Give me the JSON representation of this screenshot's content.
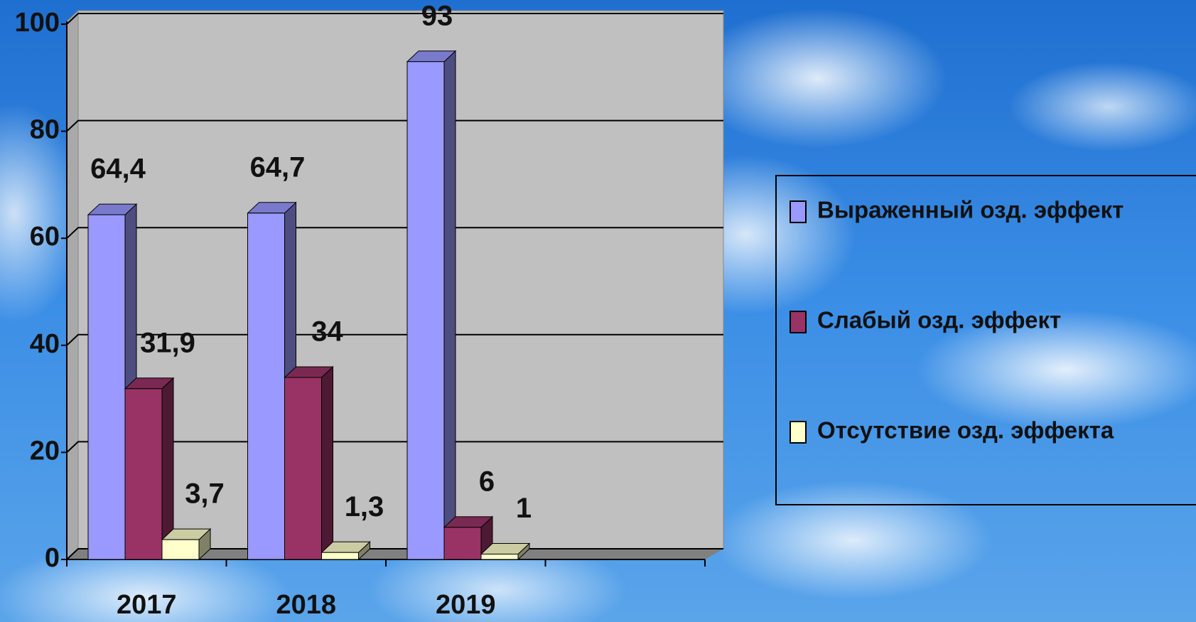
{
  "chart_data": {
    "type": "bar3d",
    "categories": [
      "2017",
      "2018",
      "2019",
      null
    ],
    "series": [
      {
        "name": "Выраженный озд. эффект",
        "color": "#9999ff",
        "values": [
          64.4,
          64.7,
          93,
          null
        ],
        "value_labels": [
          "64,4",
          "64,7",
          "93",
          null
        ]
      },
      {
        "name": "Слабый озд. эффект",
        "color": "#993366",
        "values": [
          31.9,
          34,
          6,
          null
        ],
        "value_labels": [
          "31,9",
          "34",
          "6",
          null
        ]
      },
      {
        "name": "Отсутствие озд. эффекта",
        "color": "#ffffcc",
        "values": [
          3.7,
          1.3,
          1,
          null
        ],
        "value_labels": [
          "3,7",
          "1,3",
          "1",
          null
        ]
      }
    ],
    "ylim": [
      0,
      100
    ],
    "yticks": [
      0,
      20,
      40,
      60,
      80,
      100
    ],
    "grid": true,
    "legend": "right"
  }
}
